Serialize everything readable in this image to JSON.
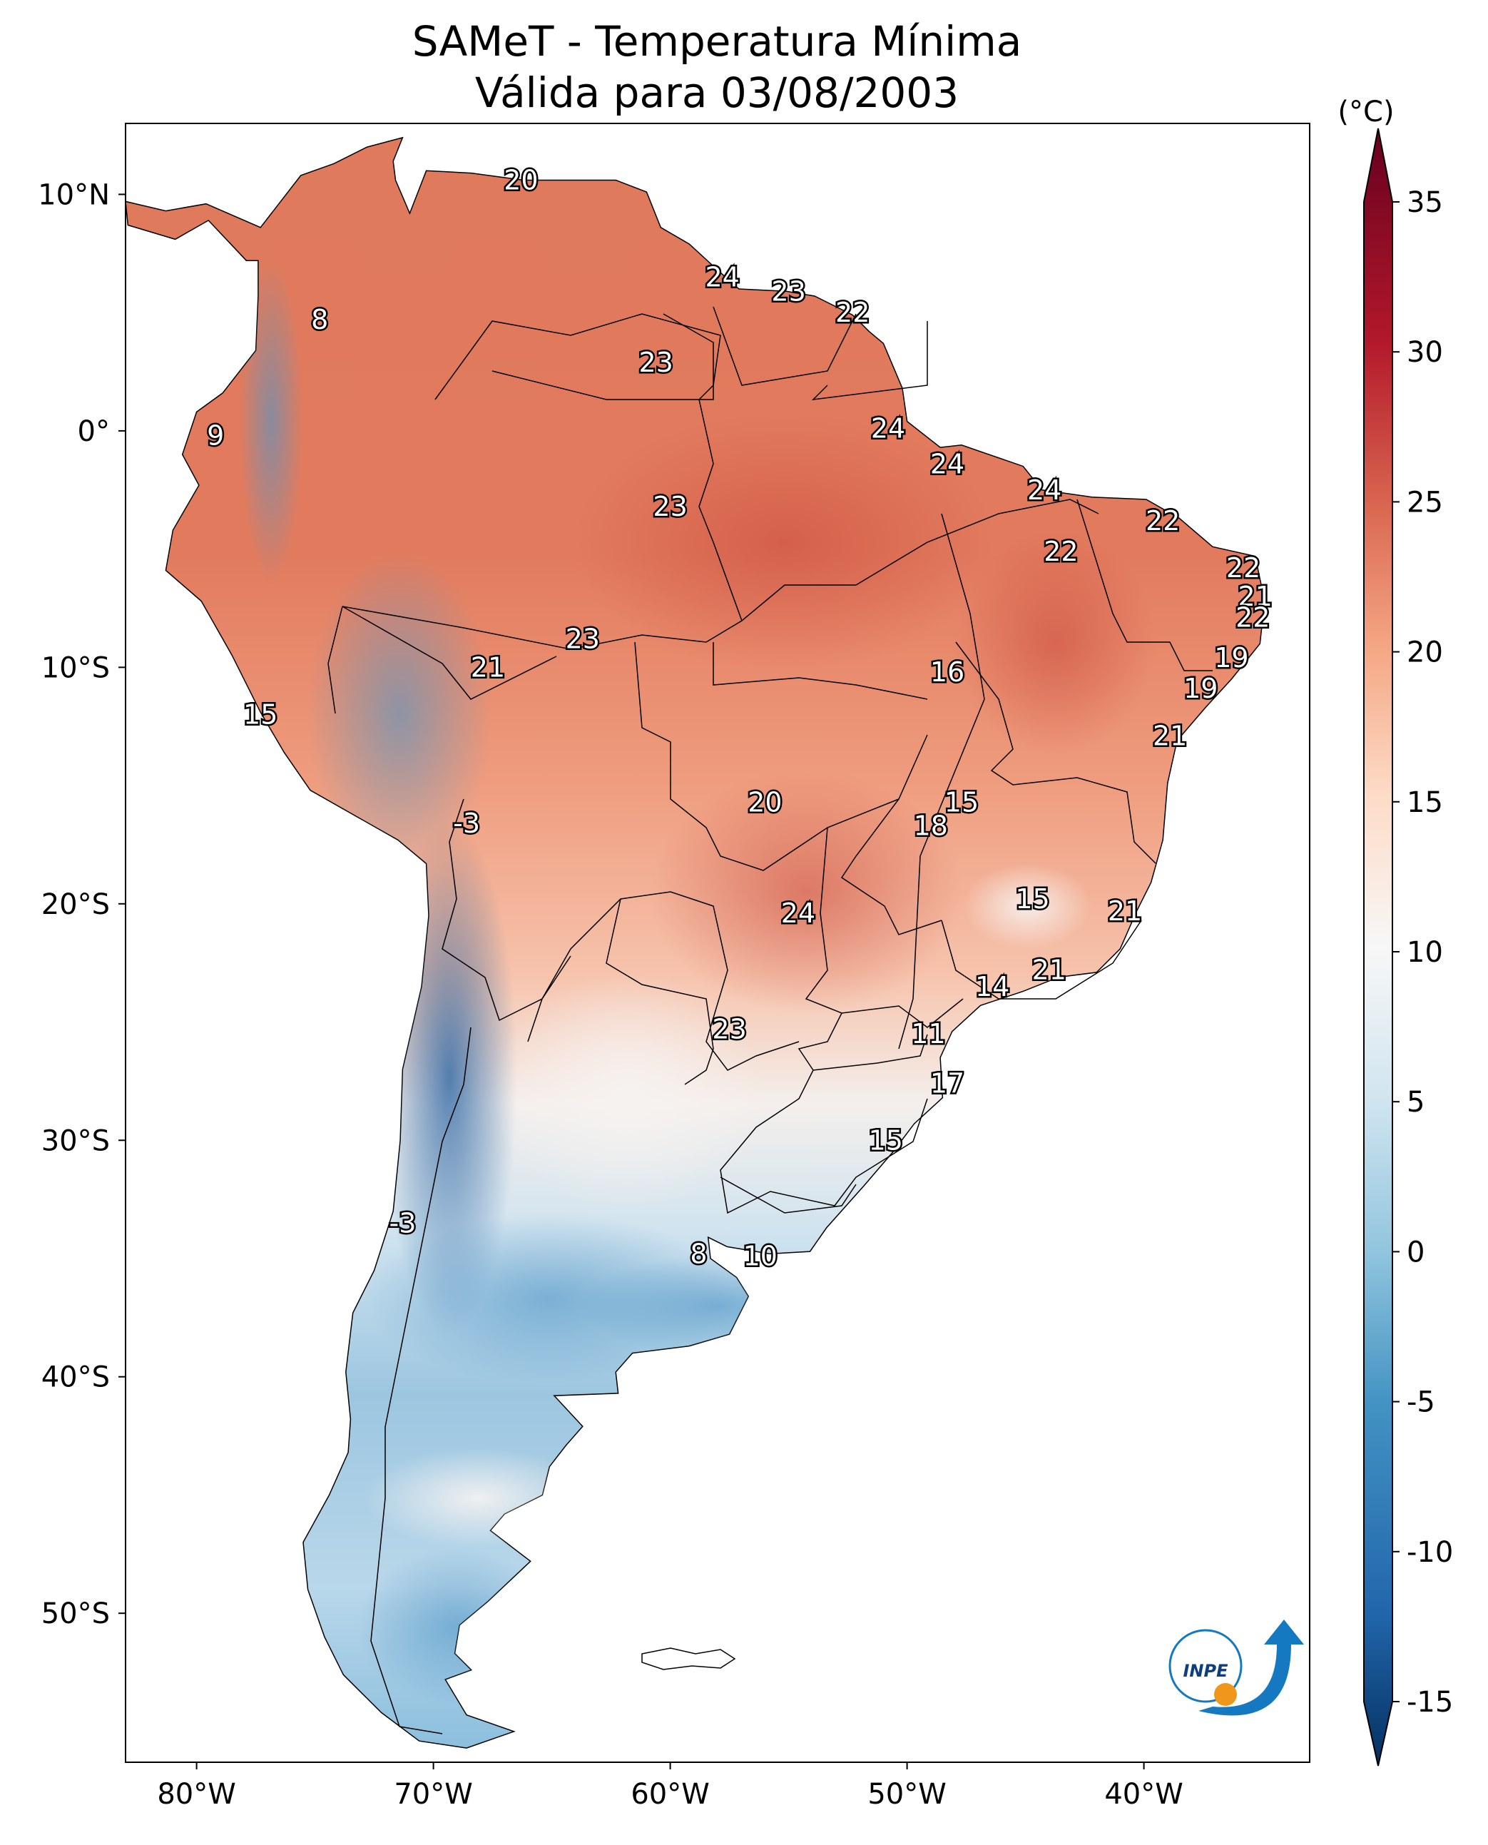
{
  "title": {
    "line1": "SAMeT - Temperatura Mínima",
    "line2": "Válida para 03/08/2003"
  },
  "colorbar": {
    "unit": "(°C)",
    "min": -15,
    "max": 35,
    "ticks": [
      "35",
      "30",
      "25",
      "20",
      "15",
      "10",
      "5",
      "0",
      "-5",
      "-10",
      "-15"
    ],
    "stops": [
      {
        "v": -17,
        "c": "#053061"
      },
      {
        "v": -12,
        "c": "#2166ac"
      },
      {
        "v": -5,
        "c": "#4393c3"
      },
      {
        "v": 0,
        "c": "#92c5de"
      },
      {
        "v": 5,
        "c": "#d1e5f0"
      },
      {
        "v": 10,
        "c": "#f7f7f7"
      },
      {
        "v": 15,
        "c": "#fddbc7"
      },
      {
        "v": 20,
        "c": "#f4a582"
      },
      {
        "v": 25,
        "c": "#d6604d"
      },
      {
        "v": 30,
        "c": "#b2182b"
      },
      {
        "v": 37,
        "c": "#67001f"
      }
    ]
  },
  "axes": {
    "lon_ticks": [
      "80°W",
      "70°W",
      "60°W",
      "50°W",
      "40°W"
    ],
    "lat_ticks": [
      "10°N",
      "0°",
      "10°S",
      "20°S",
      "30°S",
      "40°S",
      "50°S"
    ]
  },
  "labels": [
    {
      "text": "20",
      "lon": -66.3,
      "lat": 10.6,
      "val": 20
    },
    {
      "text": "24",
      "lon": -57.8,
      "lat": 6.5,
      "val": 24
    },
    {
      "text": "23",
      "lon": -55.0,
      "lat": 5.9,
      "val": 23
    },
    {
      "text": "22",
      "lon": -52.3,
      "lat": 5.0,
      "val": 22
    },
    {
      "text": "8",
      "lon": -74.8,
      "lat": 4.7,
      "val": 8
    },
    {
      "text": "23",
      "lon": -60.6,
      "lat": 2.9,
      "val": 23
    },
    {
      "text": "24",
      "lon": -50.8,
      "lat": 0.1,
      "val": 24
    },
    {
      "text": "9",
      "lon": -79.2,
      "lat": -0.2,
      "val": 9
    },
    {
      "text": "24",
      "lon": -48.3,
      "lat": -1.4,
      "val": 24
    },
    {
      "text": "24",
      "lon": -44.2,
      "lat": -2.5,
      "val": 24
    },
    {
      "text": "23",
      "lon": -60.0,
      "lat": -3.2,
      "val": 23
    },
    {
      "text": "22",
      "lon": -39.2,
      "lat": -3.8,
      "val": 22
    },
    {
      "text": "22",
      "lon": -43.5,
      "lat": -5.1,
      "val": 22
    },
    {
      "text": "22",
      "lon": -35.8,
      "lat": -5.8,
      "val": 22
    },
    {
      "text": "21",
      "lon": -35.3,
      "lat": -7.0,
      "val": 21
    },
    {
      "text": "22",
      "lon": -35.4,
      "lat": -7.9,
      "val": 22
    },
    {
      "text": "23",
      "lon": -63.7,
      "lat": -8.8,
      "val": 23
    },
    {
      "text": "19",
      "lon": -36.3,
      "lat": -9.6,
      "val": 19
    },
    {
      "text": "21",
      "lon": -67.7,
      "lat": -10.0,
      "val": 21
    },
    {
      "text": "16",
      "lon": -48.3,
      "lat": -10.2,
      "val": 16
    },
    {
      "text": "19",
      "lon": -37.6,
      "lat": -10.9,
      "val": 19
    },
    {
      "text": "15",
      "lon": -77.3,
      "lat": -12.0,
      "val": 15
    },
    {
      "text": "21",
      "lon": -38.9,
      "lat": -12.9,
      "val": 21
    },
    {
      "text": "15",
      "lon": -47.7,
      "lat": -15.7,
      "val": 15
    },
    {
      "text": "20",
      "lon": -56.0,
      "lat": -15.7,
      "val": 20
    },
    {
      "text": "18",
      "lon": -49.0,
      "lat": -16.7,
      "val": 18
    },
    {
      "text": "-3",
      "lon": -68.6,
      "lat": -16.6,
      "val": -3
    },
    {
      "text": "15",
      "lon": -44.7,
      "lat": -19.8,
      "val": 15
    },
    {
      "text": "21",
      "lon": -40.8,
      "lat": -20.3,
      "val": 21
    },
    {
      "text": "24",
      "lon": -54.6,
      "lat": -20.4,
      "val": 24
    },
    {
      "text": "21",
      "lon": -44.0,
      "lat": -22.8,
      "val": 21
    },
    {
      "text": "14",
      "lon": -46.4,
      "lat": -23.5,
      "val": 14
    },
    {
      "text": "11",
      "lon": -49.1,
      "lat": -25.5,
      "val": 11
    },
    {
      "text": "23",
      "lon": -57.5,
      "lat": -25.3,
      "val": 23
    },
    {
      "text": "17",
      "lon": -48.3,
      "lat": -27.6,
      "val": 17
    },
    {
      "text": "15",
      "lon": -50.9,
      "lat": -30.0,
      "val": 15
    },
    {
      "text": "-3",
      "lon": -71.3,
      "lat": -33.5,
      "val": -3
    },
    {
      "text": "8",
      "lon": -58.8,
      "lat": -34.8,
      "val": 8
    },
    {
      "text": "10",
      "lon": -56.2,
      "lat": -34.9,
      "val": 10
    }
  ],
  "logo": {
    "text": "INPE"
  }
}
